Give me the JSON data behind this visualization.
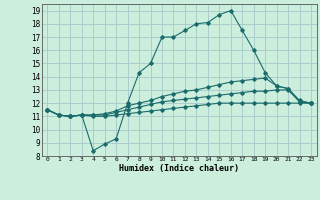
{
  "title": "",
  "xlabel": "Humidex (Indice chaleur)",
  "bg_color": "#cceedd",
  "grid_color": "#aacccc",
  "line_color": "#1a6b6b",
  "xlim": [
    -0.5,
    23.5
  ],
  "ylim": [
    8,
    19.5
  ],
  "yticks": [
    8,
    9,
    10,
    11,
    12,
    13,
    14,
    15,
    16,
    17,
    18,
    19
  ],
  "xticks": [
    0,
    1,
    2,
    3,
    4,
    5,
    6,
    7,
    8,
    9,
    10,
    11,
    12,
    13,
    14,
    15,
    16,
    17,
    18,
    19,
    20,
    21,
    22,
    23
  ],
  "series": [
    {
      "x": [
        0,
        1,
        2,
        3,
        4,
        5,
        6,
        7,
        8,
        9,
        10,
        11,
        12,
        13,
        14,
        15,
        16,
        17,
        18,
        19,
        20,
        21,
        22,
        23
      ],
      "y": [
        11.5,
        11.1,
        11.0,
        11.1,
        8.4,
        8.9,
        9.3,
        12.0,
        14.3,
        15.0,
        17.0,
        17.0,
        17.5,
        18.0,
        18.1,
        18.7,
        19.0,
        17.5,
        16.0,
        14.3,
        13.3,
        13.1,
        12.1,
        12.0
      ]
    },
    {
      "x": [
        0,
        1,
        2,
        3,
        4,
        5,
        6,
        7,
        8,
        9,
        10,
        11,
        12,
        13,
        14,
        15,
        16,
        17,
        18,
        19,
        20,
        21,
        22,
        23
      ],
      "y": [
        11.5,
        11.1,
        11.0,
        11.1,
        11.1,
        11.2,
        11.4,
        11.8,
        12.0,
        12.2,
        12.5,
        12.7,
        12.9,
        13.0,
        13.2,
        13.4,
        13.6,
        13.7,
        13.8,
        13.9,
        13.3,
        13.1,
        12.2,
        12.0
      ]
    },
    {
      "x": [
        0,
        1,
        2,
        3,
        4,
        5,
        6,
        7,
        8,
        9,
        10,
        11,
        12,
        13,
        14,
        15,
        16,
        17,
        18,
        19,
        20,
        21,
        22,
        23
      ],
      "y": [
        11.5,
        11.1,
        11.0,
        11.1,
        11.1,
        11.1,
        11.3,
        11.5,
        11.7,
        11.9,
        12.1,
        12.2,
        12.3,
        12.4,
        12.5,
        12.6,
        12.7,
        12.8,
        12.9,
        12.9,
        13.0,
        13.0,
        12.1,
        12.0
      ]
    },
    {
      "x": [
        0,
        1,
        2,
        3,
        4,
        5,
        6,
        7,
        8,
        9,
        10,
        11,
        12,
        13,
        14,
        15,
        16,
        17,
        18,
        19,
        20,
        21,
        22,
        23
      ],
      "y": [
        11.5,
        11.1,
        11.0,
        11.1,
        11.0,
        11.0,
        11.1,
        11.2,
        11.3,
        11.4,
        11.5,
        11.6,
        11.7,
        11.8,
        11.9,
        12.0,
        12.0,
        12.0,
        12.0,
        12.0,
        12.0,
        12.0,
        12.0,
        12.0
      ]
    }
  ]
}
